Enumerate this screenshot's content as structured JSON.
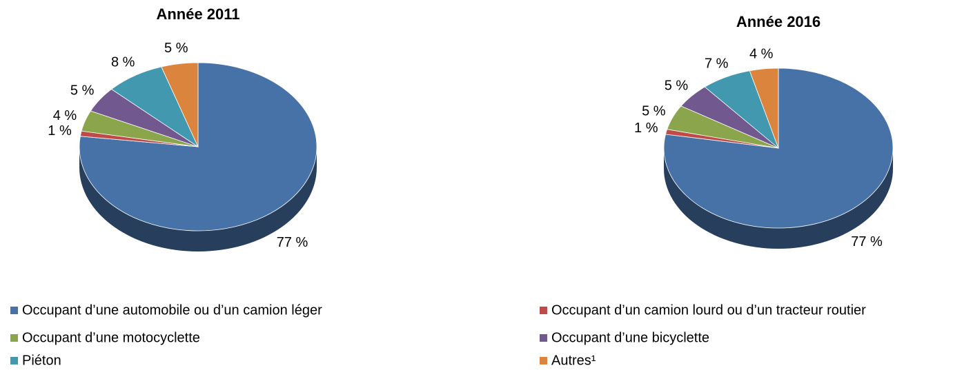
{
  "chart_data": [
    {
      "type": "pie",
      "title": "Année 2011",
      "categories": [
        "Occupant d’une automobile ou d’un camion léger",
        "Occupant d’un camion lourd ou d’un tracteur routier",
        "Occupant d’une motocyclette",
        "Occupant d’une bicyclette",
        "Piéton",
        "Autres¹"
      ],
      "colors": [
        "#4672a8",
        "#be4b48",
        "#8aa54b",
        "#71588f",
        "#4198af",
        "#db843d"
      ],
      "values": [
        77,
        1,
        4,
        5,
        8,
        5
      ],
      "value_labels": [
        "77 %",
        "1 %",
        "4 %",
        "5 %",
        "8 %",
        "5 %"
      ],
      "legend": "bottom"
    },
    {
      "type": "pie",
      "title": "Année 2016",
      "values": [
        77,
        1,
        5,
        5,
        7,
        4
      ],
      "value_labels": [
        "77 %",
        "1 %",
        "5 %",
        "5 %",
        "7 %",
        "4 %"
      ]
    }
  ]
}
